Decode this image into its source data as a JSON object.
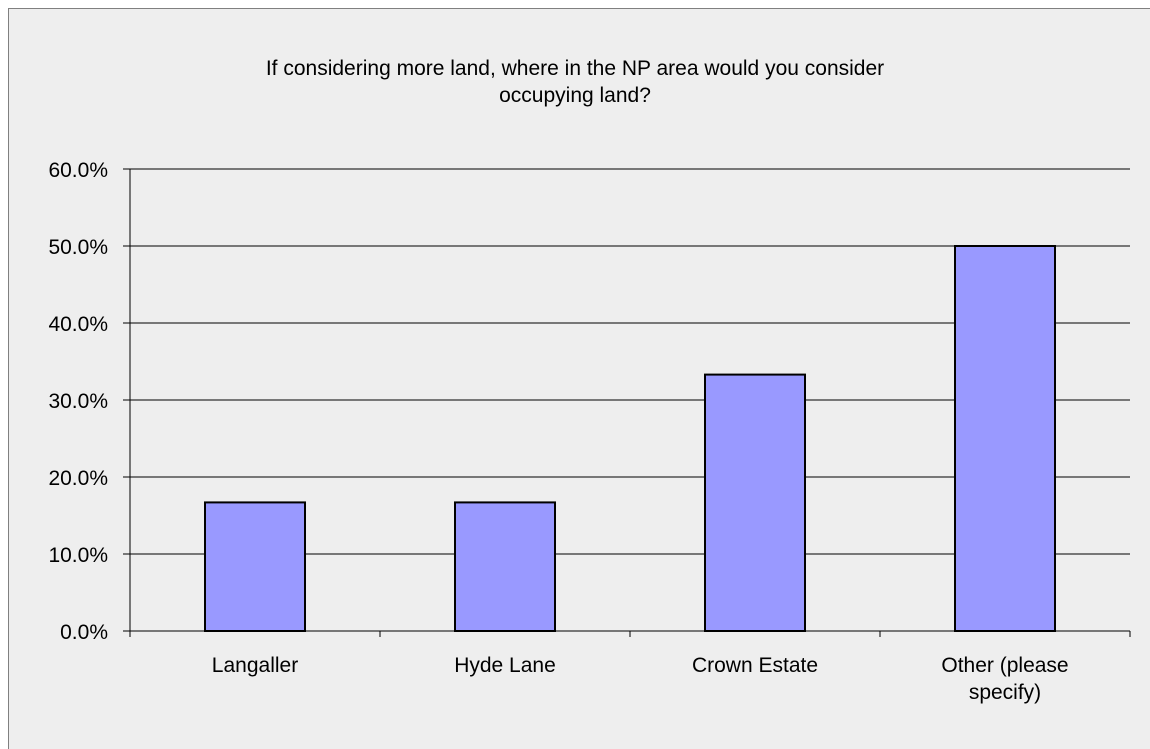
{
  "chart_data": {
    "type": "bar",
    "title_lines": [
      "If considering more land, where in the NP area would you consider",
      "occupying land?"
    ],
    "categories": [
      [
        "Langaller"
      ],
      [
        "Hyde Lane"
      ],
      [
        "Crown Estate"
      ],
      [
        "Other (please",
        "specify)"
      ]
    ],
    "values": [
      16.7,
      16.7,
      33.3,
      50.0
    ],
    "ylim": [
      0,
      60
    ],
    "yticks": [
      "0.0%",
      "10.0%",
      "20.0%",
      "30.0%",
      "40.0%",
      "50.0%",
      "60.0%"
    ],
    "ytick_values": [
      0,
      10,
      20,
      30,
      40,
      50,
      60
    ],
    "grid": true,
    "bar_color": "#9999ff",
    "bar_border_color": "#000000",
    "plot_background": "#eeeeee"
  }
}
